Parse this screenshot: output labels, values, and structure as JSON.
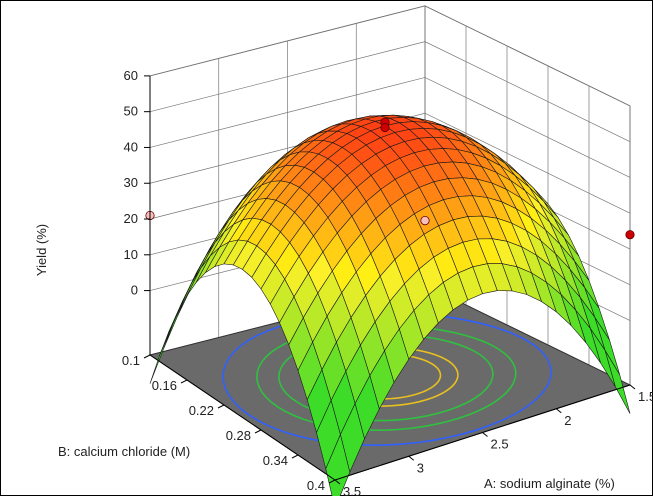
{
  "chart_data": {
    "type": "surface3d",
    "title": "",
    "zlabel": "Yield (%)",
    "xlabel": "A: sodium alginate (%)",
    "ylabel": "B: calcium chloride (M)",
    "z_ticks": [
      "0",
      "10",
      "20",
      "30",
      "40",
      "50",
      "60"
    ],
    "x_ticks": [
      "1.5",
      "2",
      "2.5",
      "3",
      "3.5"
    ],
    "y_ticks": [
      "0.1",
      "0.16",
      "0.22",
      "0.28",
      "0.34",
      "0.4"
    ],
    "xlim": [
      1.5,
      3.5
    ],
    "ylim": [
      0.1,
      0.4
    ],
    "zlim": [
      0,
      60
    ],
    "surface_model": {
      "max_yield": 52,
      "optimum_A": 2.5,
      "optimum_B": 0.25
    },
    "design_points": [
      {
        "A": 2.5,
        "B": 0.25,
        "yield": 53,
        "color": "#cc0000"
      },
      {
        "A": 2.5,
        "B": 0.25,
        "yield": 51.5,
        "color": "#cc0000"
      },
      {
        "A": 1.5,
        "B": 0.1,
        "yield": 0,
        "color": "#f6c0c0"
      },
      {
        "A": 1.5,
        "B": 0.4,
        "yield": 24,
        "color": "#cc0000"
      },
      {
        "A": 3.5,
        "B": 0.1,
        "yield": 21,
        "color": "#f6c0c0"
      }
    ],
    "floor_color": "#6a6a6a",
    "contour_colors": [
      "#3060ff",
      "#30c040",
      "#30c040",
      "#e8c020",
      "#e8c020"
    ],
    "grid": true
  }
}
